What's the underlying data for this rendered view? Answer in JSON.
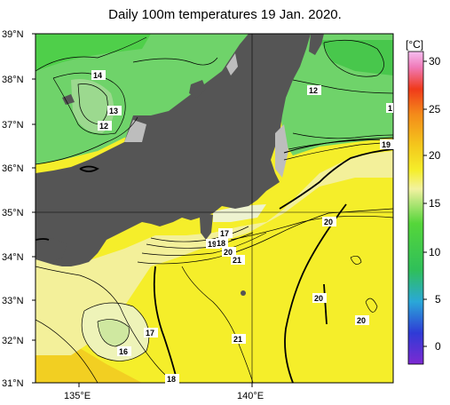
{
  "title": "Daily 100m temperatures 19 Jan. 2020.",
  "axes": {
    "lat_labels": [
      "39°N",
      "38°N",
      "37°N",
      "36°N",
      "35°N",
      "34°N",
      "33°N",
      "32°N",
      "31°N"
    ],
    "lon_labels": [
      "135°E",
      "140°E"
    ]
  },
  "colorbar": {
    "unit": "[°C]",
    "ticks": [
      "30",
      "25",
      "20",
      "15",
      "10",
      "5",
      "0"
    ],
    "colors": [
      "#7d2ad2",
      "#2f3bd6",
      "#2aa8d8",
      "#2fbf5a",
      "#55d63a",
      "#b7e67a",
      "#f2f2a0",
      "#f5ee2a",
      "#f4c71c",
      "#f48a1a",
      "#f03a1a",
      "#f07ab8",
      "#f5bef0"
    ]
  },
  "contour_labels": [
    {
      "text": "14"
    },
    {
      "text": "13"
    },
    {
      "text": "12"
    },
    {
      "text": "12"
    },
    {
      "text": "1"
    },
    {
      "text": "19"
    },
    {
      "text": "20"
    },
    {
      "text": "17"
    },
    {
      "text": "19"
    },
    {
      "text": "18"
    },
    {
      "text": "20"
    },
    {
      "text": "21"
    },
    {
      "text": "20"
    },
    {
      "text": "20"
    },
    {
      "text": "17"
    },
    {
      "text": "16"
    },
    {
      "text": "21"
    },
    {
      "text": "18"
    }
  ]
}
